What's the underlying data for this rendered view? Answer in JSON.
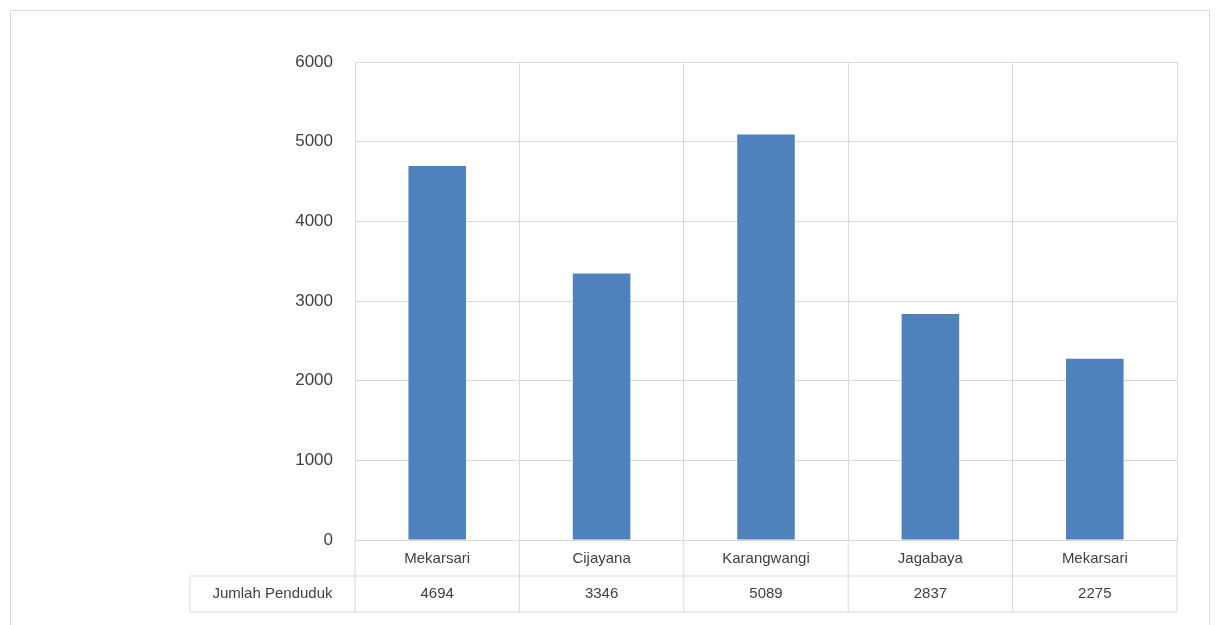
{
  "chart_data": {
    "type": "bar",
    "categories": [
      "Mekarsari",
      "Cijayana",
      "Karangwangi",
      "Jagabaya",
      "Mekarsari"
    ],
    "series": [
      {
        "name": "Jumlah Penduduk",
        "color": "#4f81bd",
        "values": [
          4694,
          3346,
          5089,
          2837,
          2275
        ]
      }
    ],
    "ylim": [
      0,
      6000
    ],
    "yticks": [
      0,
      1000,
      2000,
      3000,
      4000,
      5000,
      6000
    ],
    "grid": true,
    "data_labels": true
  }
}
